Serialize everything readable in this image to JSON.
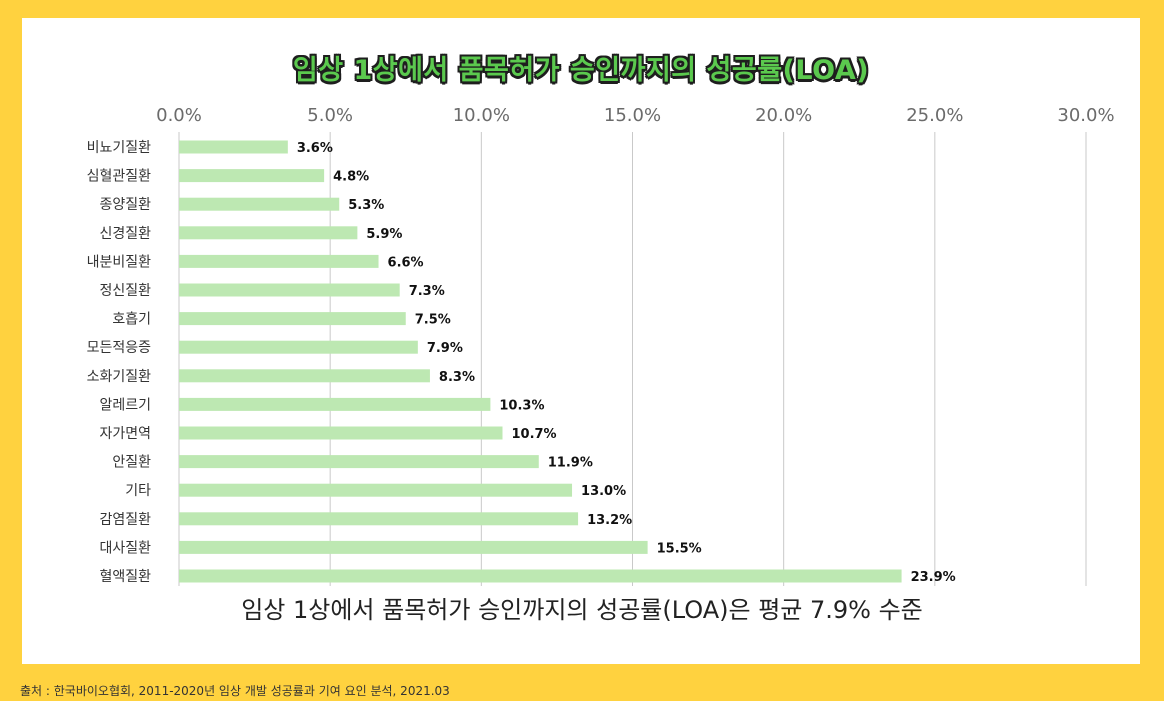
{
  "header": {
    "title": "임상 1상에서 품목허가 승인까지의 성공률(LOA)"
  },
  "summary": "임상 1상에서 품목허가 승인까지의 성공률(LOA)은 평균 7.9% 수준",
  "source": "출처 : 한국바이오협회, 2011-2020년 임상 개발 성공률과 기여 요인 분석, 2021.03",
  "colors": {
    "background": "#FFD23F",
    "bar": "#BDE8B2",
    "title": "#5BC94E",
    "grid": "#C9C9C9"
  },
  "chart_data": {
    "type": "bar",
    "orientation": "horizontal",
    "title": "임상 1상에서 품목허가 승인까지의 성공률(LOA)",
    "xlim": [
      0,
      30
    ],
    "x_ticks": [
      "0.0%",
      "5.0%",
      "10.0%",
      "15.0%",
      "20.0%",
      "25.0%",
      "30.0%"
    ],
    "axis_position": "top",
    "grid": true,
    "categories": [
      "비뇨기질환",
      "심혈관질환",
      "종양질환",
      "신경질환",
      "내분비질환",
      "정신질환",
      "호흡기",
      "모든적응증",
      "소화기질환",
      "알레르기",
      "자가면역",
      "안질환",
      "기타",
      "감염질환",
      "대사질환",
      "혈액질환"
    ],
    "values": [
      3.6,
      4.8,
      5.3,
      5.9,
      6.6,
      7.3,
      7.5,
      7.9,
      8.3,
      10.3,
      10.7,
      11.9,
      13.0,
      13.2,
      15.5,
      23.9
    ],
    "data_labels": [
      "3.6%",
      "4.8%",
      "5.3%",
      "5.9%",
      "6.6%",
      "7.3%",
      "7.5%",
      "7.9%",
      "8.3%",
      "10.3%",
      "10.7%",
      "11.9%",
      "13.0%",
      "13.2%",
      "15.5%",
      "23.9%"
    ]
  }
}
